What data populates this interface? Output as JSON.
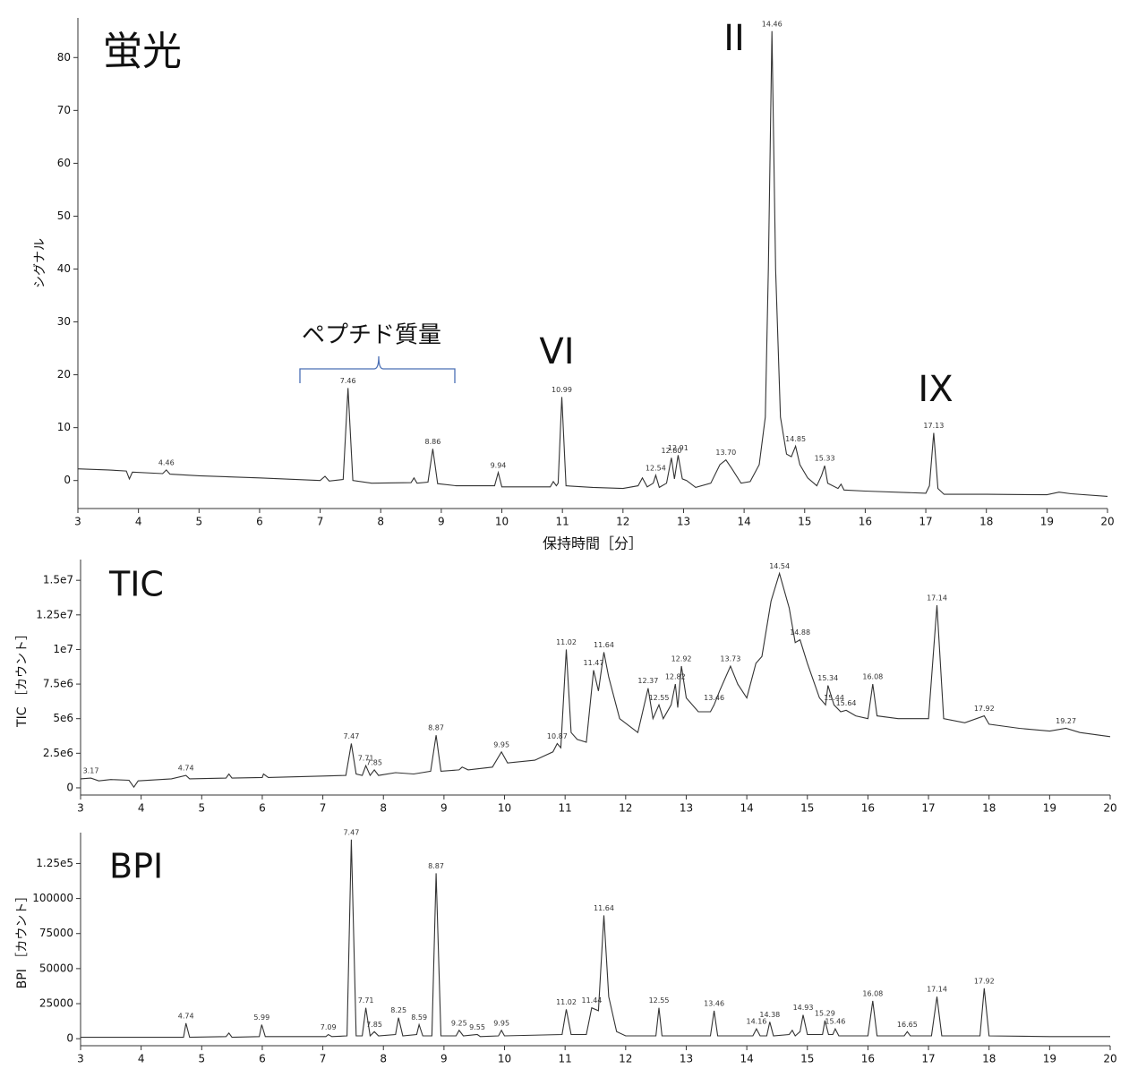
{
  "chart_data": [
    {
      "type": "line",
      "title": "蛍光",
      "y_label": "シグナル",
      "x_label": "保持時間［分］",
      "color": "#333333",
      "annotations": [
        "ペプチド質量",
        "VI",
        "II",
        "IX"
      ],
      "xlim": [
        3,
        20
      ],
      "xticks": [
        3,
        4,
        5,
        6,
        7,
        8,
        9,
        10,
        11,
        12,
        13,
        14,
        15,
        16,
        17,
        18,
        19,
        20
      ],
      "ylim": [
        -5.3,
        87.5
      ],
      "yticks": [
        0,
        10,
        20,
        30,
        40,
        50,
        60,
        70,
        80
      ],
      "x": [
        3,
        3.5,
        3.8,
        3.85,
        3.9,
        4.4,
        4.46,
        4.52,
        5,
        6,
        7,
        7.08,
        7.15,
        7.38,
        7.46,
        7.54,
        7.85,
        8.5,
        8.55,
        8.6,
        8.78,
        8.86,
        8.94,
        9.25,
        9.88,
        9.94,
        10,
        10.8,
        10.85,
        10.9,
        10.93,
        10.99,
        11.06,
        11.5,
        12,
        12.25,
        12.32,
        12.4,
        12.5,
        12.54,
        12.6,
        12.72,
        12.8,
        12.85,
        12.91,
        12.98,
        13.05,
        13.2,
        13.45,
        13.6,
        13.7,
        13.8,
        13.95,
        14.1,
        14.25,
        14.35,
        14.4,
        14.46,
        14.52,
        14.6,
        14.7,
        14.78,
        14.85,
        14.92,
        15.05,
        15.2,
        15.28,
        15.33,
        15.38,
        15.55,
        15.6,
        15.65,
        16,
        17,
        17.06,
        17.13,
        17.2,
        17.3,
        18,
        19,
        19.2,
        19.4,
        20
      ],
      "y": [
        2.2,
        2.0,
        1.8,
        0.3,
        1.6,
        1.3,
        2.0,
        1.2,
        0.9,
        0.5,
        0.0,
        0.8,
        -0.1,
        0.2,
        17.5,
        0.0,
        -0.5,
        -0.4,
        0.5,
        -0.5,
        -0.3,
        6.0,
        -0.6,
        -1.0,
        -1.0,
        1.5,
        -1.2,
        -1.2,
        -0.2,
        -1.0,
        -0.5,
        15.8,
        -1.0,
        -1.3,
        -1.5,
        -1.0,
        0.5,
        -1.2,
        -0.5,
        1.0,
        -1.3,
        -0.5,
        4.3,
        0.3,
        4.8,
        0.3,
        0.0,
        -1.3,
        -0.5,
        3.0,
        3.9,
        2.2,
        -0.5,
        -0.2,
        3,
        12,
        40,
        85,
        40,
        12,
        5,
        4.5,
        6.5,
        3.0,
        0.5,
        -1.0,
        1.0,
        2.8,
        -0.5,
        -1.5,
        -0.7,
        -1.8,
        -2.0,
        -2.4,
        -1.0,
        9.0,
        -1.5,
        -2.6,
        -2.6,
        -2.7,
        -2.2,
        -2.5,
        -3.0
      ],
      "peaks": [
        {
          "x": 4.46,
          "y": 2.0
        },
        {
          "x": 7.46,
          "y": 17.5
        },
        {
          "x": 8.86,
          "y": 6.0
        },
        {
          "x": 9.94,
          "y": 1.5
        },
        {
          "x": 10.99,
          "y": 15.8
        },
        {
          "x": 12.54,
          "y": 1.0
        },
        {
          "x": 12.8,
          "label": "12.80",
          "y": 4.3
        },
        {
          "x": 12.91,
          "y": 4.8
        },
        {
          "x": 13.7,
          "label": "13.70",
          "y": 3.9
        },
        {
          "x": 14.46,
          "y": 85
        },
        {
          "x": 14.85,
          "y": 6.5
        },
        {
          "x": 15.33,
          "y": 2.8
        },
        {
          "x": 17.13,
          "y": 9.0
        }
      ]
    },
    {
      "type": "line",
      "title": "TIC",
      "y_label": "TIC ［カウント］",
      "color": "#333333",
      "xlim": [
        3,
        20
      ],
      "xticks": [
        3,
        4,
        5,
        6,
        7,
        8,
        9,
        10,
        11,
        12,
        13,
        14,
        15,
        16,
        17,
        18,
        19,
        20
      ],
      "ylim": [
        -520000,
        16500000
      ],
      "yticks": [
        0,
        {
          "value": 2500000,
          "label": "2.5e6"
        },
        {
          "value": 5000000,
          "label": "5e6"
        },
        {
          "value": 7500000,
          "label": "7.5e6"
        },
        {
          "value": 10000000,
          "label": "1e7"
        },
        {
          "value": 12500000,
          "label": "1.25e7"
        },
        {
          "value": 15000000,
          "label": "1.5e7"
        }
      ],
      "x": [
        3,
        3.17,
        3.3,
        3.5,
        3.8,
        3.88,
        3.95,
        4.5,
        4.74,
        4.8,
        5.4,
        5.45,
        5.5,
        6,
        6.02,
        6.1,
        7,
        7.38,
        7.47,
        7.55,
        7.65,
        7.71,
        7.78,
        7.85,
        7.92,
        8.2,
        8.5,
        8.78,
        8.87,
        8.95,
        9.25,
        9.3,
        9.4,
        9.8,
        9.95,
        10.05,
        10.5,
        10.8,
        10.87,
        10.93,
        11.02,
        11.1,
        11.2,
        11.35,
        11.47,
        11.55,
        11.64,
        11.72,
        11.9,
        12.2,
        12.37,
        12.45,
        12.55,
        12.62,
        12.75,
        12.82,
        12.86,
        12.92,
        13,
        13.2,
        13.4,
        13.46,
        13.55,
        13.73,
        13.85,
        14,
        14.15,
        14.25,
        14.4,
        14.54,
        14.7,
        14.8,
        14.88,
        15,
        15.2,
        15.3,
        15.34,
        15.44,
        15.55,
        15.64,
        15.8,
        16,
        16.08,
        16.15,
        16.5,
        17,
        17.14,
        17.25,
        17.6,
        17.92,
        18,
        18.5,
        19,
        19.27,
        19.5,
        20
      ],
      "y": [
        650000,
        700000,
        500000,
        600000,
        550000,
        50000,
        500000,
        650000,
        900000,
        650000,
        700000,
        1000000,
        700000,
        750000,
        1000000,
        750000,
        850000,
        900000,
        3200000,
        1000000,
        900000,
        1600000,
        900000,
        1300000,
        900000,
        1100000,
        1000000,
        1200000,
        3800000,
        1200000,
        1300000,
        1500000,
        1300000,
        1500000,
        2600000,
        1800000,
        2000000,
        2600000,
        3200000,
        2900000,
        10000000,
        4000000,
        3500000,
        3300000,
        8500000,
        7000000,
        9800000,
        8000000,
        5000000,
        4000000,
        7200000,
        5000000,
        6000000,
        5000000,
        6000000,
        7500000,
        5800000,
        8800000,
        6500000,
        5500000,
        5500000,
        6000000,
        7000000,
        8800000,
        7500000,
        6500000,
        9000000,
        9500000,
        13500000,
        15500000,
        13000000,
        10500000,
        10700000,
        9000000,
        6500000,
        6000000,
        7400000,
        6000000,
        5500000,
        5600000,
        5200000,
        5000000,
        7500000,
        5200000,
        5000000,
        5000000,
        13200000,
        5000000,
        4700000,
        5200000,
        4600000,
        4300000,
        4100000,
        4300000,
        4000000,
        3700000
      ],
      "peaks": [
        {
          "x": 3.17,
          "y": 700000
        },
        {
          "x": 4.74,
          "y": 900000
        },
        {
          "x": 7.47,
          "y": 3200000
        },
        {
          "x": 7.71,
          "y": 1600000
        },
        {
          "x": 7.85,
          "y": 1300000
        },
        {
          "x": 8.87,
          "y": 3800000
        },
        {
          "x": 9.95,
          "y": 2600000
        },
        {
          "x": 10.87,
          "y": 3200000
        },
        {
          "x": 11.02,
          "y": 10000000
        },
        {
          "x": 11.47,
          "y": 8500000
        },
        {
          "x": 11.64,
          "y": 9800000
        },
        {
          "x": 12.37,
          "y": 7200000
        },
        {
          "x": 12.55,
          "y": 6000000
        },
        {
          "x": 12.82,
          "y": 7500000
        },
        {
          "x": 12.92,
          "y": 8800000
        },
        {
          "x": 13.46,
          "y": 6000000
        },
        {
          "x": 13.73,
          "y": 8800000
        },
        {
          "x": 14.54,
          "y": 15500000
        },
        {
          "x": 14.88,
          "y": 10700000
        },
        {
          "x": 15.34,
          "y": 7400000
        },
        {
          "x": 15.44,
          "y": 6000000
        },
        {
          "x": 15.64,
          "y": 5600000
        },
        {
          "x": 16.08,
          "y": 7500000
        },
        {
          "x": 17.14,
          "y": 13200000
        },
        {
          "x": 17.92,
          "y": 5200000
        },
        {
          "x": 19.27,
          "y": 4300000
        }
      ]
    },
    {
      "type": "line",
      "title": "BPI",
      "y_label": "BPI ［カウント］",
      "color": "#333333",
      "xlim": [
        3,
        20
      ],
      "xticks": [
        3,
        4,
        5,
        6,
        7,
        8,
        9,
        10,
        11,
        12,
        13,
        14,
        15,
        16,
        17,
        18,
        19,
        20
      ],
      "ylim": [
        -5000,
        147000
      ],
      "yticks": [
        0,
        25000,
        50000,
        75000,
        100000,
        {
          "value": 125000,
          "label": "1.25e5"
        }
      ],
      "x": [
        3,
        4.7,
        4.74,
        4.8,
        5.4,
        5.45,
        5.5,
        5.95,
        5.99,
        6.05,
        7.05,
        7.09,
        7.15,
        7.4,
        7.47,
        7.55,
        7.65,
        7.71,
        7.78,
        7.85,
        7.92,
        8.2,
        8.25,
        8.32,
        8.55,
        8.59,
        8.65,
        8.8,
        8.87,
        8.95,
        9.2,
        9.25,
        9.32,
        9.55,
        9.6,
        9.9,
        9.95,
        10,
        10.95,
        11.02,
        11.1,
        11.35,
        11.44,
        11.55,
        11.64,
        11.72,
        11.85,
        12,
        12.5,
        12.55,
        12.6,
        13.4,
        13.46,
        13.52,
        14.1,
        14.16,
        14.22,
        14.33,
        14.38,
        14.44,
        14.7,
        14.75,
        14.8,
        14.88,
        14.93,
        15,
        15.25,
        15.29,
        15.35,
        15.42,
        15.46,
        15.52,
        16,
        16.08,
        16.15,
        16.6,
        16.65,
        16.7,
        17.05,
        17.14,
        17.22,
        17.85,
        17.92,
        18,
        19,
        20
      ],
      "y": [
        1000,
        1000,
        11000,
        1000,
        1500,
        4000,
        1000,
        1500,
        10000,
        1500,
        1500,
        3000,
        1500,
        2000,
        142000,
        2000,
        2000,
        22000,
        2000,
        5000,
        2000,
        3000,
        15000,
        2000,
        3000,
        10000,
        2000,
        2000,
        118000,
        2000,
        2000,
        6000,
        2000,
        3000,
        1500,
        2000,
        6000,
        2000,
        3000,
        21000,
        3000,
        3000,
        22000,
        20000,
        88000,
        30000,
        5000,
        2000,
        2000,
        22000,
        2000,
        2000,
        20000,
        2000,
        2000,
        7000,
        2000,
        2000,
        12000,
        2000,
        3000,
        6000,
        2000,
        5000,
        17000,
        3000,
        3000,
        13000,
        3000,
        3000,
        7000,
        2000,
        2000,
        27000,
        2000,
        2000,
        5000,
        2000,
        2000,
        30000,
        2000,
        2000,
        36000,
        2000,
        1500,
        1500
      ],
      "peaks": [
        {
          "x": 4.74,
          "y": 11000
        },
        {
          "x": 5.99,
          "y": 10000
        },
        {
          "x": 7.09,
          "y": 3000
        },
        {
          "x": 7.47,
          "y": 142000
        },
        {
          "x": 7.71,
          "y": 22000
        },
        {
          "x": 7.85,
          "y": 5000
        },
        {
          "x": 8.25,
          "y": 15000
        },
        {
          "x": 8.59,
          "y": 10000
        },
        {
          "x": 8.87,
          "y": 118000
        },
        {
          "x": 9.25,
          "y": 6000
        },
        {
          "x": 9.55,
          "y": 3000
        },
        {
          "x": 9.95,
          "y": 6000
        },
        {
          "x": 11.02,
          "y": 21000
        },
        {
          "x": 11.44,
          "y": 22000
        },
        {
          "x": 11.64,
          "y": 88000
        },
        {
          "x": 12.55,
          "y": 22000
        },
        {
          "x": 13.46,
          "y": 20000
        },
        {
          "x": 14.16,
          "y": 7000
        },
        {
          "x": 14.38,
          "y": 12000
        },
        {
          "x": 14.93,
          "y": 17000
        },
        {
          "x": 15.29,
          "y": 13000
        },
        {
          "x": 15.46,
          "y": 7000
        },
        {
          "x": 16.08,
          "y": 27000
        },
        {
          "x": 16.65,
          "y": 5000
        },
        {
          "x": 17.14,
          "y": 30000
        },
        {
          "x": 17.92,
          "y": 36000
        }
      ]
    }
  ]
}
